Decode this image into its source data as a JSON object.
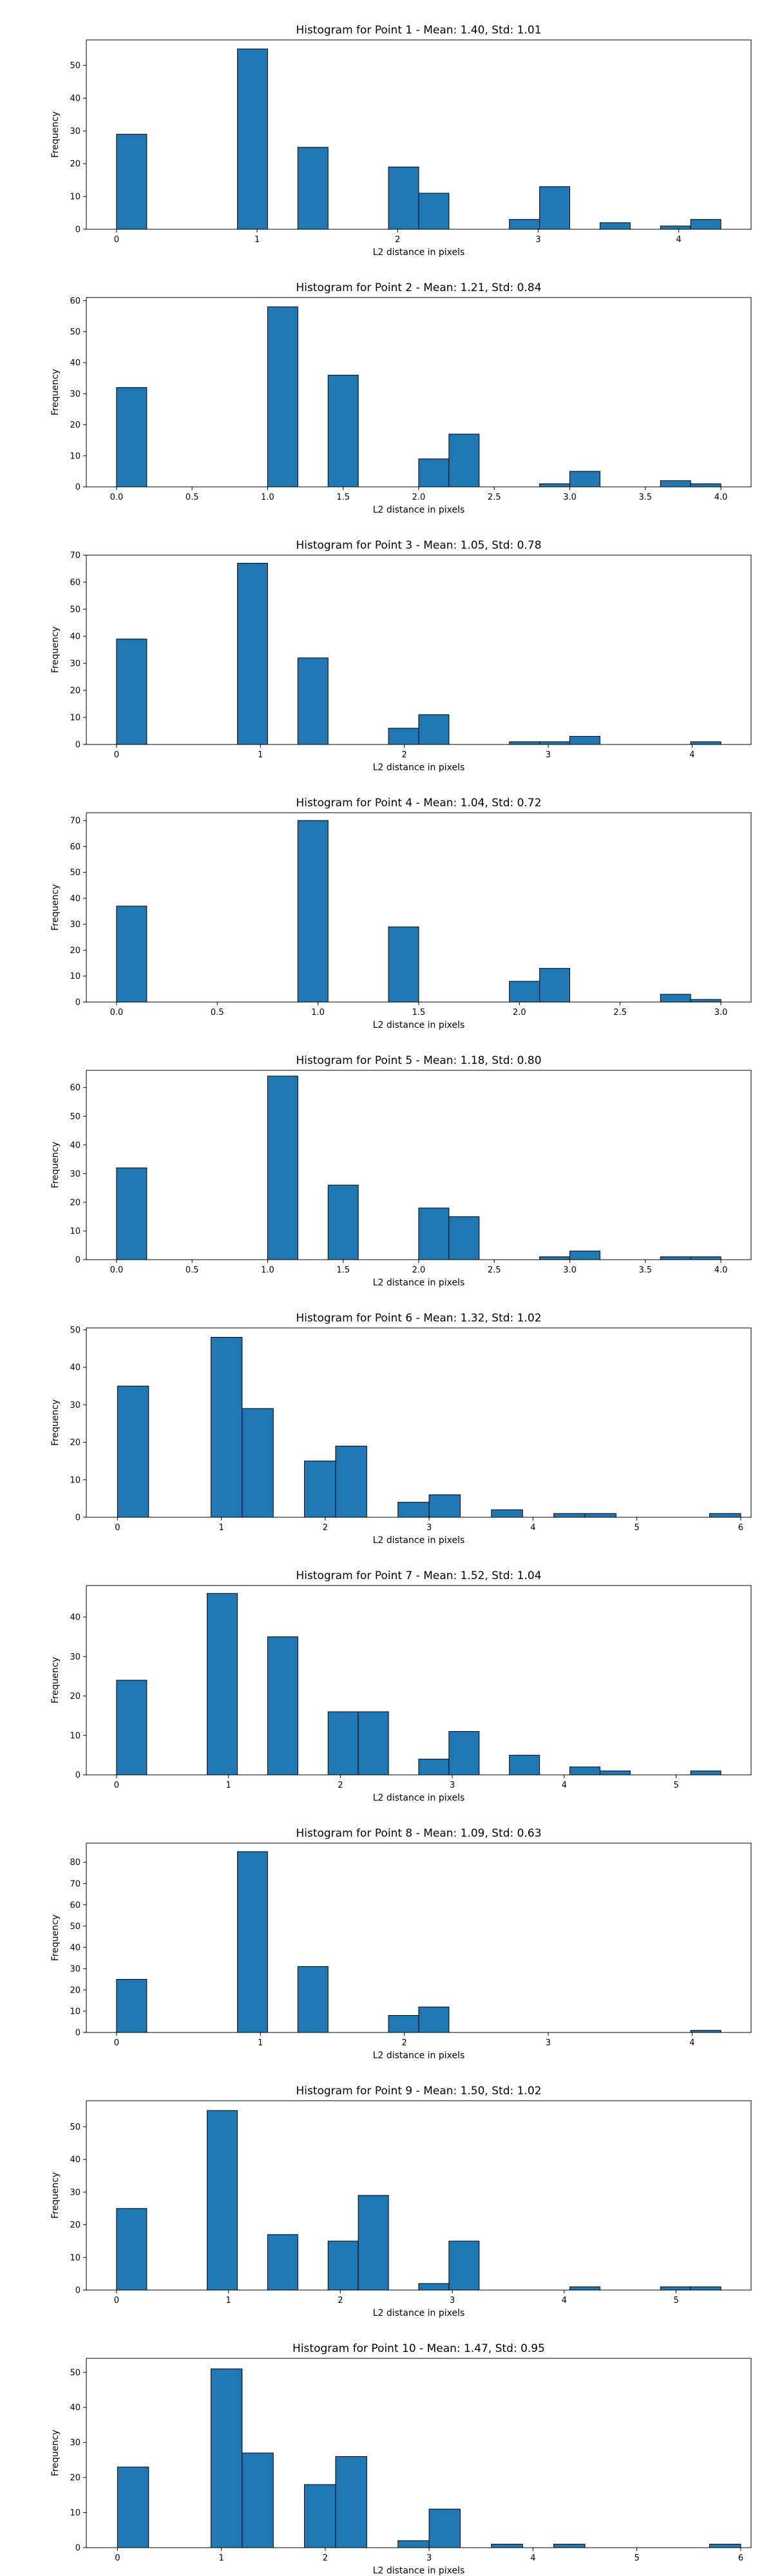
{
  "chart_data": [
    {
      "type": "bar",
      "title": "Histogram for Point 1 - Mean: 1.40, Std: 1.01",
      "xlabel": "L2 distance in pixels",
      "ylabel": "Frequency",
      "xlim": [
        -0.215,
        4.515
      ],
      "ylim": [
        0,
        57.75
      ],
      "xticks": [
        0,
        1,
        2,
        3,
        4
      ],
      "xtick_labels": [
        "0",
        "1",
        "2",
        "3",
        "4"
      ],
      "yticks": [
        0,
        10,
        20,
        30,
        40,
        50
      ],
      "ytick_labels": [
        "0",
        "10",
        "20",
        "30",
        "40",
        "50"
      ],
      "bin_edges": [
        0.0,
        0.215,
        0.43,
        0.645,
        0.86,
        1.075,
        1.29,
        1.505,
        1.72,
        1.935,
        2.15,
        2.365,
        2.58,
        2.795,
        3.01,
        3.225,
        3.44,
        3.655,
        3.87,
        4.085,
        4.3
      ],
      "values": [
        29,
        0,
        0,
        0,
        55,
        0,
        25,
        0,
        0,
        19,
        11,
        0,
        0,
        3,
        13,
        0,
        2,
        0,
        1,
        3
      ],
      "grid": false,
      "color": "#1f77b4"
    },
    {
      "type": "bar",
      "title": "Histogram for Point 2 - Mean: 1.21, Std: 0.84",
      "xlabel": "L2 distance in pixels",
      "ylabel": "Frequency",
      "xlim": [
        -0.2,
        4.2
      ],
      "ylim": [
        0,
        61
      ],
      "xticks": [
        0.0,
        0.5,
        1.0,
        1.5,
        2.0,
        2.5,
        3.0,
        3.5,
        4.0
      ],
      "xtick_labels": [
        "0.0",
        "0.5",
        "1.0",
        "1.5",
        "2.0",
        "2.5",
        "3.0",
        "3.5",
        "4.0"
      ],
      "yticks": [
        0,
        10,
        20,
        30,
        40,
        50,
        60
      ],
      "ytick_labels": [
        "0",
        "10",
        "20",
        "30",
        "40",
        "50",
        "60"
      ],
      "bin_edges": [
        0.0,
        0.2,
        0.4,
        0.6,
        0.8,
        1.0,
        1.2,
        1.4,
        1.6,
        1.8,
        2.0,
        2.2,
        2.4,
        2.6,
        2.8,
        3.0,
        3.2,
        3.4,
        3.6,
        3.8,
        4.0
      ],
      "values": [
        32,
        0,
        0,
        0,
        0,
        58,
        0,
        36,
        0,
        0,
        9,
        17,
        0,
        0,
        1,
        5,
        0,
        0,
        2,
        1
      ],
      "grid": false,
      "color": "#1f77b4"
    },
    {
      "type": "bar",
      "title": "Histogram for Point 3 - Mean: 1.05, Std: 0.78",
      "xlabel": "L2 distance in pixels",
      "ylabel": "Frequency",
      "xlim": [
        -0.21,
        4.41
      ],
      "ylim": [
        0,
        70
      ],
      "xticks": [
        0,
        1,
        2,
        3,
        4
      ],
      "xtick_labels": [
        "0",
        "1",
        "2",
        "3",
        "4"
      ],
      "yticks": [
        0,
        10,
        20,
        30,
        40,
        50,
        60,
        70
      ],
      "ytick_labels": [
        "0",
        "10",
        "20",
        "30",
        "40",
        "50",
        "60",
        "70"
      ],
      "bin_edges": [
        0.0,
        0.21,
        0.42,
        0.63,
        0.84,
        1.05,
        1.26,
        1.47,
        1.68,
        1.89,
        2.1,
        2.31,
        2.52,
        2.73,
        2.94,
        3.15,
        3.36,
        3.57,
        3.78,
        3.99,
        4.2
      ],
      "values": [
        39,
        0,
        0,
        0,
        67,
        0,
        32,
        0,
        0,
        6,
        11,
        0,
        0,
        1,
        1,
        3,
        0,
        0,
        0,
        1
      ],
      "grid": false,
      "color": "#1f77b4"
    },
    {
      "type": "bar",
      "title": "Histogram for Point 4 - Mean: 1.04, Std: 0.72",
      "xlabel": "L2 distance in pixels",
      "ylabel": "Frequency",
      "xlim": [
        -0.15,
        3.15
      ],
      "ylim": [
        0,
        73
      ],
      "xticks": [
        0.0,
        0.5,
        1.0,
        1.5,
        2.0,
        2.5,
        3.0
      ],
      "xtick_labels": [
        "0.0",
        "0.5",
        "1.0",
        "1.5",
        "2.0",
        "2.5",
        "3.0"
      ],
      "yticks": [
        0,
        10,
        20,
        30,
        40,
        50,
        60,
        70
      ],
      "ytick_labels": [
        "0",
        "10",
        "20",
        "30",
        "40",
        "50",
        "60",
        "70"
      ],
      "bin_edges": [
        0.0,
        0.15,
        0.3,
        0.45,
        0.6,
        0.75,
        0.9,
        1.05,
        1.2,
        1.35,
        1.5,
        1.65,
        1.8,
        1.95,
        2.1,
        2.25,
        2.4,
        2.55,
        2.7,
        2.85,
        3.0
      ],
      "values": [
        37,
        0,
        0,
        0,
        0,
        0,
        70,
        0,
        0,
        29,
        0,
        0,
        0,
        8,
        13,
        0,
        0,
        0,
        3,
        1
      ],
      "grid": false,
      "color": "#1f77b4"
    },
    {
      "type": "bar",
      "title": "Histogram for Point 5 - Mean: 1.18, Std: 0.80",
      "xlabel": "L2 distance in pixels",
      "ylabel": "Frequency",
      "xlim": [
        -0.2,
        4.2
      ],
      "ylim": [
        0,
        66
      ],
      "xticks": [
        0.0,
        0.5,
        1.0,
        1.5,
        2.0,
        2.5,
        3.0,
        3.5,
        4.0
      ],
      "xtick_labels": [
        "0.0",
        "0.5",
        "1.0",
        "1.5",
        "2.0",
        "2.5",
        "3.0",
        "3.5",
        "4.0"
      ],
      "yticks": [
        0,
        10,
        20,
        30,
        40,
        50,
        60
      ],
      "ytick_labels": [
        "0",
        "10",
        "20",
        "30",
        "40",
        "50",
        "60"
      ],
      "bin_edges": [
        0.0,
        0.2,
        0.4,
        0.6,
        0.8,
        1.0,
        1.2,
        1.4,
        1.6,
        1.8,
        2.0,
        2.2,
        2.4,
        2.6,
        2.8,
        3.0,
        3.2,
        3.4,
        3.6,
        3.8,
        4.0
      ],
      "values": [
        32,
        0,
        0,
        0,
        0,
        64,
        0,
        26,
        0,
        0,
        18,
        15,
        0,
        0,
        1,
        3,
        0,
        0,
        1,
        1
      ],
      "grid": false,
      "color": "#1f77b4"
    },
    {
      "type": "bar",
      "title": "Histogram for Point 6 - Mean: 1.32, Std: 1.02",
      "xlabel": "L2 distance in pixels",
      "ylabel": "Frequency",
      "xlim": [
        -0.3,
        6.1
      ],
      "ylim": [
        0,
        50.5
      ],
      "xticks": [
        0,
        1,
        2,
        3,
        4,
        5,
        6
      ],
      "xtick_labels": [
        "0",
        "1",
        "2",
        "3",
        "4",
        "5",
        "6"
      ],
      "yticks": [
        0,
        10,
        20,
        30,
        40,
        50
      ],
      "ytick_labels": [
        "0",
        "10",
        "20",
        "30",
        "40",
        "50"
      ],
      "bin_edges": [
        0.0,
        0.3,
        0.6,
        0.9,
        1.2,
        1.5,
        1.8,
        2.1,
        2.4,
        2.7,
        3.0,
        3.3,
        3.6,
        3.9,
        4.2,
        4.5,
        4.8,
        5.1,
        5.4,
        5.7,
        6.0
      ],
      "values": [
        35,
        0,
        0,
        48,
        29,
        0,
        15,
        19,
        0,
        4,
        6,
        0,
        2,
        0,
        1,
        1,
        0,
        0,
        0,
        1
      ],
      "grid": false,
      "color": "#1f77b4"
    },
    {
      "type": "bar",
      "title": "Histogram for Point 7 - Mean: 1.52, Std: 1.04",
      "xlabel": "L2 distance in pixels",
      "ylabel": "Frequency",
      "xlim": [
        -0.27,
        5.67
      ],
      "ylim": [
        0,
        48
      ],
      "xticks": [
        0,
        1,
        2,
        3,
        4,
        5
      ],
      "xtick_labels": [
        "0",
        "1",
        "2",
        "3",
        "4",
        "5"
      ],
      "yticks": [
        0,
        10,
        20,
        30,
        40
      ],
      "ytick_labels": [
        "0",
        "10",
        "20",
        "30",
        "40"
      ],
      "bin_edges": [
        0.0,
        0.27,
        0.54,
        0.81,
        1.08,
        1.35,
        1.62,
        1.89,
        2.16,
        2.43,
        2.7,
        2.97,
        3.24,
        3.51,
        3.78,
        4.05,
        4.32,
        4.59,
        4.86,
        5.13,
        5.4
      ],
      "values": [
        24,
        0,
        0,
        46,
        0,
        35,
        0,
        16,
        16,
        0,
        4,
        11,
        0,
        5,
        0,
        2,
        1,
        0,
        0,
        1
      ],
      "grid": false,
      "color": "#1f77b4"
    },
    {
      "type": "bar",
      "title": "Histogram for Point 8 - Mean: 1.09, Std: 0.63",
      "xlabel": "L2 distance in pixels",
      "ylabel": "Frequency",
      "xlim": [
        -0.21,
        4.41
      ],
      "ylim": [
        0,
        89
      ],
      "xticks": [
        0,
        1,
        2,
        3,
        4
      ],
      "xtick_labels": [
        "0",
        "1",
        "2",
        "3",
        "4"
      ],
      "yticks": [
        0,
        10,
        20,
        30,
        40,
        50,
        60,
        70,
        80
      ],
      "ytick_labels": [
        "0",
        "10",
        "20",
        "30",
        "40",
        "50",
        "60",
        "70",
        "80"
      ],
      "bin_edges": [
        0.0,
        0.21,
        0.42,
        0.63,
        0.84,
        1.05,
        1.26,
        1.47,
        1.68,
        1.89,
        2.1,
        2.31,
        2.52,
        2.73,
        2.94,
        3.15,
        3.36,
        3.57,
        3.78,
        3.99,
        4.2
      ],
      "values": [
        25,
        0,
        0,
        0,
        85,
        0,
        31,
        0,
        0,
        8,
        12,
        0,
        0,
        0,
        0,
        0,
        0,
        0,
        0,
        1
      ],
      "grid": false,
      "color": "#1f77b4"
    },
    {
      "type": "bar",
      "title": "Histogram for Point 9 - Mean: 1.50, Std: 1.02",
      "xlabel": "L2 distance in pixels",
      "ylabel": "Frequency",
      "xlim": [
        -0.27,
        5.67
      ],
      "ylim": [
        0,
        58
      ],
      "xticks": [
        0,
        1,
        2,
        3,
        4,
        5
      ],
      "xtick_labels": [
        "0",
        "1",
        "2",
        "3",
        "4",
        "5"
      ],
      "yticks": [
        0,
        10,
        20,
        30,
        40,
        50
      ],
      "ytick_labels": [
        "0",
        "10",
        "20",
        "30",
        "40",
        "50"
      ],
      "bin_edges": [
        0.0,
        0.27,
        0.54,
        0.81,
        1.08,
        1.35,
        1.62,
        1.89,
        2.16,
        2.43,
        2.7,
        2.97,
        3.24,
        3.51,
        3.78,
        4.05,
        4.32,
        4.59,
        4.86,
        5.13,
        5.4
      ],
      "values": [
        25,
        0,
        0,
        55,
        0,
        17,
        0,
        15,
        29,
        0,
        2,
        15,
        0,
        0,
        0,
        1,
        0,
        0,
        1,
        1
      ],
      "grid": false,
      "color": "#1f77b4"
    },
    {
      "type": "bar",
      "title": "Histogram for Point 10 - Mean: 1.47, Std: 0.95",
      "xlabel": "L2 distance in pixels",
      "ylabel": "Frequency",
      "xlim": [
        -0.3,
        6.1
      ],
      "ylim": [
        0,
        54
      ],
      "xticks": [
        0,
        1,
        2,
        3,
        4,
        5,
        6
      ],
      "xtick_labels": [
        "0",
        "1",
        "2",
        "3",
        "4",
        "5",
        "6"
      ],
      "yticks": [
        0,
        10,
        20,
        30,
        40,
        50
      ],
      "ytick_labels": [
        "0",
        "10",
        "20",
        "30",
        "40",
        "50"
      ],
      "bin_edges": [
        0.0,
        0.3,
        0.6,
        0.9,
        1.2,
        1.5,
        1.8,
        2.1,
        2.4,
        2.7,
        3.0,
        3.3,
        3.6,
        3.9,
        4.2,
        4.5,
        4.8,
        5.1,
        5.4,
        5.7,
        6.0
      ],
      "values": [
        23,
        0,
        0,
        51,
        27,
        0,
        18,
        26,
        0,
        2,
        11,
        0,
        1,
        0,
        1,
        0,
        0,
        0,
        0,
        1
      ],
      "grid": false,
      "color": "#1f77b4"
    }
  ]
}
